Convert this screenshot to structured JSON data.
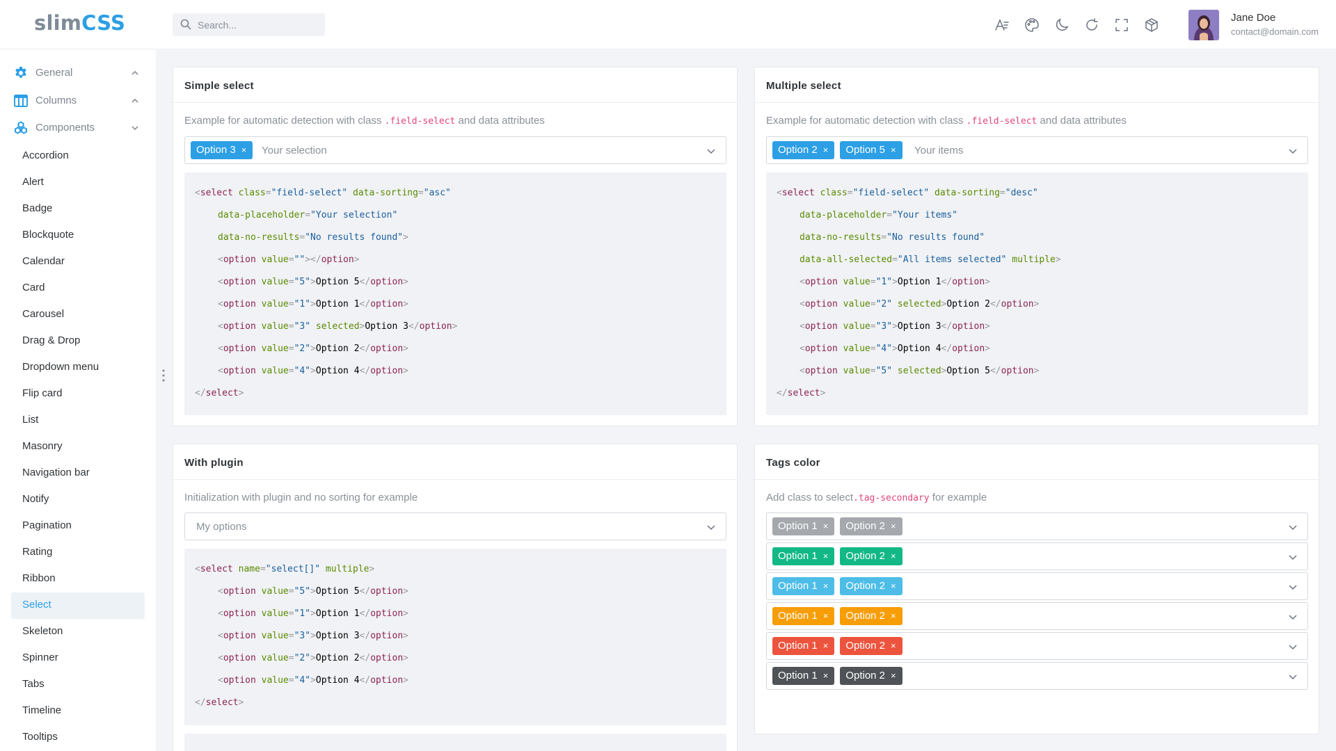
{
  "header": {
    "logo_a": "slim",
    "logo_b": "CSS",
    "search_placeholder": "Search...",
    "icons": [
      "font-size-icon",
      "palette-icon",
      "moon-icon",
      "refresh-icon",
      "fullscreen-icon",
      "box-icon"
    ],
    "user_name": "Jane Doe",
    "user_email": "contact@domain.com"
  },
  "sidebar": {
    "groups": [
      {
        "label": "General",
        "icon": "gear-icon",
        "chevron": "up"
      },
      {
        "label": "Columns",
        "icon": "columns-icon",
        "chevron": "up"
      },
      {
        "label": "Components",
        "icon": "components-icon",
        "chevron": "down"
      }
    ],
    "items": [
      "Accordion",
      "Alert",
      "Badge",
      "Blockquote",
      "Calendar",
      "Card",
      "Carousel",
      "Drag & Drop",
      "Dropdown menu",
      "Flip card",
      "List",
      "Masonry",
      "Navigation bar",
      "Notify",
      "Pagination",
      "Rating",
      "Ribbon",
      "Select",
      "Skeleton",
      "Spinner",
      "Tabs",
      "Timeline",
      "Tooltips"
    ],
    "active": "Select"
  },
  "colors": {
    "primary": "#2c9fe5",
    "secondary": "#a5a9ae",
    "success": "#12b886",
    "info": "#4dbde8",
    "warning": "#f79d06",
    "danger": "#ec543e",
    "dark": "#4f5358"
  },
  "cards": {
    "simple": {
      "title": "Simple select",
      "desc_pre": "Example for automatic detection with class ",
      "desc_code": ".field-select",
      "desc_post": " and data attributes",
      "tags": [
        "Option 3"
      ],
      "placeholder": "Your selection",
      "code": {
        "l1": {
          "attr1": "class",
          "val1": "\"field-select\"",
          "attr2": "data-sorting",
          "val2": "\"asc\""
        },
        "l2": {
          "attr": "data-placeholder",
          "val": "\"Your selection\""
        },
        "l3": {
          "attr": "data-no-results",
          "val": "\"No results found\""
        },
        "options": [
          {
            "value": "\"\"",
            "selected": "",
            "text": ""
          },
          {
            "value": "\"5\"",
            "selected": "",
            "text": "Option 5"
          },
          {
            "value": "\"1\"",
            "selected": "",
            "text": "Option 1"
          },
          {
            "value": "\"3\"",
            "selected": " selected",
            "text": "Option 3"
          },
          {
            "value": "\"2\"",
            "selected": "",
            "text": "Option 2"
          },
          {
            "value": "\"4\"",
            "selected": "",
            "text": "Option 4"
          }
        ]
      }
    },
    "multiple": {
      "title": "Multiple select",
      "desc_pre": "Example for automatic detection with class ",
      "desc_code": ".field-select",
      "desc_post": " and data attributes",
      "tags": [
        "Option 2",
        "Option 5"
      ],
      "placeholder": "Your items",
      "code": {
        "l1": {
          "attr1": "class",
          "val1": "\"field-select\"",
          "attr2": "data-sorting",
          "val2": "\"desc\""
        },
        "l2": {
          "attr": "data-placeholder",
          "val": "\"Your items\""
        },
        "l3": {
          "attr": "data-no-results",
          "val": "\"No results found\""
        },
        "l4": {
          "attr": "data-all-selected",
          "val": "\"All items selected\"",
          "extra": "multiple"
        },
        "options": [
          {
            "value": "\"1\"",
            "selected": "",
            "text": "Option 1"
          },
          {
            "value": "\"2\"",
            "selected": " selected",
            "text": "Option 2"
          },
          {
            "value": "\"3\"",
            "selected": "",
            "text": "Option 3"
          },
          {
            "value": "\"4\"",
            "selected": "",
            "text": "Option 4"
          },
          {
            "value": "\"5\"",
            "selected": " selected",
            "text": "Option 5"
          }
        ]
      }
    },
    "plugin": {
      "title": "With plugin",
      "desc": "Initialization with plugin and no sorting for example",
      "placeholder": "My options",
      "code": {
        "l1": {
          "attr1": "name",
          "val1": "\"select[]\"",
          "extra": "multiple"
        },
        "options": [
          {
            "value": "\"5\"",
            "text": "Option 5"
          },
          {
            "value": "\"1\"",
            "text": "Option 1"
          },
          {
            "value": "\"3\"",
            "text": "Option 3"
          },
          {
            "value": "\"2\"",
            "text": "Option 2"
          },
          {
            "value": "\"4\"",
            "text": "Option 4"
          }
        ]
      }
    },
    "tagscolor": {
      "title": "Tags color",
      "desc_pre": "Add class to select",
      "desc_code": ".tag-secondary",
      "desc_post": " for example",
      "rows": [
        {
          "color": "secondary",
          "tags": [
            "Option 1",
            "Option 2"
          ]
        },
        {
          "color": "success",
          "tags": [
            "Option 1",
            "Option 2"
          ]
        },
        {
          "color": "info",
          "tags": [
            "Option 1",
            "Option 2"
          ]
        },
        {
          "color": "warning",
          "tags": [
            "Option 1",
            "Option 2"
          ]
        },
        {
          "color": "danger",
          "tags": [
            "Option 1",
            "Option 2"
          ]
        },
        {
          "color": "dark",
          "tags": [
            "Option 1",
            "Option 2"
          ]
        }
      ]
    }
  },
  "code_tokens": {
    "select": "select",
    "option": "option",
    "value": "value",
    "remove": "×"
  }
}
